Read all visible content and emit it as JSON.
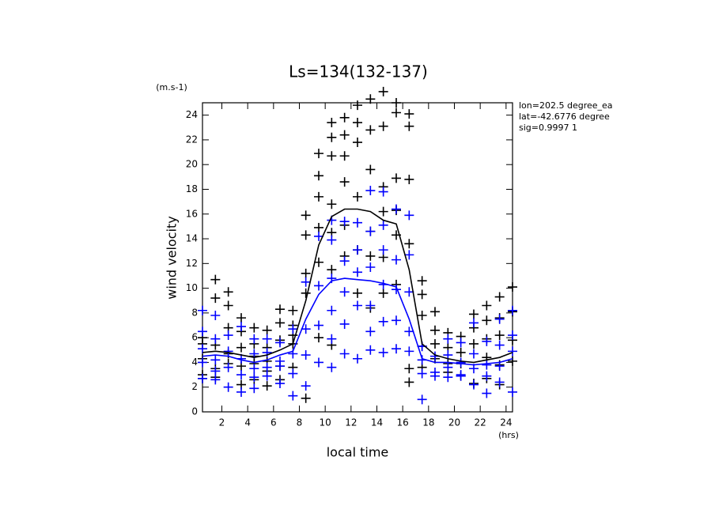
{
  "chart_data": {
    "type": "line",
    "title": "Ls=134(132-137)",
    "y_unit": "(m.s-1)",
    "x_unit": "(hrs)",
    "x_label": "local time",
    "y_label": "wind velocity",
    "annotations": [
      "lon=202.5 degree_ea",
      "lat=-42.6776 degree",
      "sig=0.9997 1"
    ],
    "xlim": [
      0.5,
      24.5
    ],
    "ylim": [
      0,
      25
    ],
    "xticks": [
      2,
      4,
      6,
      8,
      10,
      12,
      14,
      16,
      18,
      20,
      22,
      24
    ],
    "yticks": [
      0,
      2,
      4,
      6,
      8,
      10,
      12,
      14,
      16,
      18,
      20,
      22,
      24
    ],
    "lines": [
      {
        "color": "#000000",
        "x": [
          0.5,
          1.5,
          2.5,
          3.5,
          4.5,
          5.5,
          6.5,
          7.5,
          8.5,
          9.5,
          10.5,
          11.5,
          12.5,
          13.5,
          14.5,
          15.5,
          16.5,
          17.5,
          18.5,
          19.5,
          20.5,
          21.5,
          22.5,
          23.5,
          24.5
        ],
        "values": [
          4.8,
          4.9,
          4.8,
          4.6,
          4.4,
          4.6,
          5.0,
          5.5,
          9.0,
          13.5,
          15.8,
          16.4,
          16.4,
          16.2,
          15.5,
          15.2,
          11.5,
          5.5,
          4.6,
          4.3,
          4.1,
          4.0,
          4.2,
          4.4,
          4.8
        ]
      },
      {
        "color": "#0000ff",
        "x": [
          0.5,
          1.5,
          2.5,
          3.5,
          4.5,
          5.5,
          6.5,
          7.5,
          8.5,
          9.5,
          10.5,
          11.5,
          12.5,
          13.5,
          14.5,
          15.5,
          16.5,
          17.5,
          18.5,
          19.5,
          20.5,
          21.5,
          22.5,
          23.5,
          24.5
        ],
        "values": [
          4.5,
          4.6,
          4.5,
          4.2,
          4.0,
          4.2,
          4.6,
          4.9,
          7.5,
          9.5,
          10.6,
          10.8,
          10.7,
          10.6,
          10.4,
          10.1,
          7.5,
          4.3,
          4.0,
          4.0,
          3.9,
          3.8,
          3.9,
          4.0,
          4.3
        ]
      }
    ],
    "scatter": [
      {
        "color": "#000000",
        "x": [
          0.5,
          0.5,
          0.5,
          0.5,
          0.5,
          1.5,
          1.5,
          1.5,
          1.5,
          1.5,
          2.5,
          2.5,
          2.5,
          2.5,
          2.5,
          3.5,
          3.5,
          3.5,
          3.5,
          3.5,
          4.5,
          4.5,
          4.5,
          4.5,
          4.5,
          5.5,
          5.5,
          5.5,
          5.5,
          5.5,
          6.5,
          6.5,
          6.5,
          6.5,
          6.5,
          7.5,
          7.5,
          7.5,
          7.5,
          7.5,
          8.5,
          8.5,
          8.5,
          8.5,
          8.5,
          9.5,
          9.5,
          9.5,
          9.5,
          9.5,
          9.5,
          10.5,
          10.5,
          10.5,
          10.5,
          10.5,
          10.5,
          10.5,
          11.5,
          11.5,
          11.5,
          11.5,
          11.5,
          11.5,
          12.5,
          12.5,
          12.5,
          12.5,
          12.5,
          12.5,
          13.5,
          13.5,
          13.5,
          13.5,
          13.5,
          13.5,
          14.5,
          14.5,
          14.5,
          14.5,
          14.5,
          14.5,
          15.5,
          15.5,
          15.5,
          15.5,
          15.5,
          15.5,
          16.5,
          16.5,
          16.5,
          16.5,
          16.5,
          16.5,
          17.5,
          17.5,
          17.5,
          17.5,
          17.5,
          18.5,
          18.5,
          18.5,
          18.5,
          19.5,
          19.5,
          19.5,
          19.5,
          20.5,
          20.5,
          20.5,
          20.5,
          21.5,
          21.5,
          21.5,
          21.5,
          22.5,
          22.5,
          22.5,
          22.5,
          22.5,
          23.5,
          23.5,
          23.5,
          23.5,
          23.5,
          24.5,
          24.5,
          24.5,
          24.5
        ],
        "values": [
          3,
          5.5,
          4.3,
          2.7,
          6,
          10.7,
          9.2,
          5.4,
          3.5,
          2.8,
          9.7,
          8.6,
          6.8,
          4.7,
          3.9,
          7.6,
          5.2,
          3.7,
          2.2,
          6.5,
          6.8,
          5.5,
          4.5,
          3.9,
          2.6,
          6.6,
          5.2,
          4.1,
          3.3,
          2.1,
          8.3,
          7.2,
          5.8,
          3.7,
          2.6,
          8.2,
          7,
          5.5,
          3.6,
          6.2,
          15.9,
          14.3,
          11.2,
          9.6,
          1.1,
          20.9,
          19.1,
          17.4,
          14.9,
          12.1,
          6,
          23.4,
          22.2,
          20.7,
          16.8,
          14.5,
          11.5,
          5.4,
          23.8,
          22.4,
          20.7,
          18.6,
          15.1,
          12.6,
          24.8,
          23.4,
          21.8,
          17.4,
          13.1,
          9.6,
          25.3,
          22.8,
          19.6,
          14.6,
          12.6,
          8.4,
          25.9,
          23.1,
          18.2,
          16.2,
          12.5,
          9.6,
          25,
          24.2,
          18.9,
          16.3,
          14.3,
          10.3,
          24.1,
          23.1,
          18.8,
          13.6,
          3.5,
          2.4,
          10.6,
          9.5,
          7.8,
          5.3,
          3.6,
          8.1,
          6.6,
          5.5,
          4.3,
          6.4,
          5.2,
          3.9,
          3.2,
          6.1,
          4.8,
          3.9,
          2.9,
          7.9,
          6.8,
          5.5,
          2.3,
          8.6,
          7.4,
          5.9,
          4.4,
          2.7,
          9.3,
          7.6,
          6.2,
          3.8,
          2.2,
          10.1,
          8.1,
          5.8,
          4.1
        ]
      },
      {
        "color": "#0000ff",
        "x": [
          0.5,
          0.5,
          0.5,
          0.5,
          0.5,
          1.5,
          1.5,
          1.5,
          1.5,
          1.5,
          2.5,
          2.5,
          2.5,
          2.5,
          3.5,
          3.5,
          3.5,
          3.5,
          4.5,
          4.5,
          4.5,
          4.5,
          4.5,
          5.5,
          5.5,
          5.5,
          5.5,
          6.5,
          6.5,
          6.5,
          6.5,
          7.5,
          7.5,
          7.5,
          7.5,
          8.5,
          8.5,
          8.5,
          8.5,
          9.5,
          9.5,
          9.5,
          9.5,
          10.5,
          10.5,
          10.5,
          10.5,
          10.5,
          10.5,
          11.5,
          11.5,
          11.5,
          11.5,
          11.5,
          12.5,
          12.5,
          12.5,
          12.5,
          12.5,
          13.5,
          13.5,
          13.5,
          13.5,
          13.5,
          13.5,
          14.5,
          14.5,
          14.5,
          14.5,
          14.5,
          14.5,
          15.5,
          15.5,
          15.5,
          15.5,
          15.5,
          16.5,
          16.5,
          16.5,
          16.5,
          16.5,
          17.5,
          17.5,
          17.5,
          17.5,
          18.5,
          18.5,
          18.5,
          19.5,
          19.5,
          19.5,
          19.5,
          20.5,
          20.5,
          20.5,
          20.5,
          21.5,
          21.5,
          21.5,
          21.5,
          22.5,
          22.5,
          22.5,
          22.5,
          23.5,
          23.5,
          23.5,
          23.5,
          24.5,
          24.5,
          24.5,
          24.5
        ],
        "values": [
          8.2,
          6.5,
          5.1,
          4,
          2.7,
          7.8,
          5.9,
          4.2,
          3.3,
          2.6,
          6.2,
          4.9,
          3.6,
          2,
          6.9,
          4.3,
          3,
          1.6,
          5.9,
          4.7,
          3.5,
          1.9,
          2.8,
          5.9,
          4.8,
          3.6,
          2.9,
          5.6,
          4.1,
          3.7,
          2.3,
          6.7,
          4.7,
          3.1,
          1.3,
          10.5,
          6.7,
          4.6,
          2.1,
          14.2,
          10.2,
          7,
          4,
          15.5,
          13.9,
          10.8,
          8.2,
          5.9,
          3.6,
          15.4,
          12.2,
          9.7,
          7.1,
          4.7,
          15.3,
          13.1,
          11.3,
          8.6,
          4.3,
          17.9,
          14.6,
          11.7,
          8.6,
          6.5,
          5,
          17.8,
          15.1,
          13.1,
          10.3,
          7.3,
          4.8,
          16.4,
          12.3,
          9.9,
          7.4,
          5.1,
          15.9,
          12.7,
          9.7,
          6.5,
          4.9,
          5.3,
          4.2,
          3.1,
          1,
          4.5,
          3.2,
          2.9,
          5.9,
          4.6,
          3.6,
          2.8,
          5.6,
          4,
          3,
          2.9,
          7.2,
          4.7,
          3.5,
          2.2,
          5.7,
          3.8,
          2.9,
          1.5,
          7.5,
          5.4,
          3.7,
          2.4,
          8.2,
          6.2,
          4.9,
          1.6
        ]
      }
    ]
  }
}
